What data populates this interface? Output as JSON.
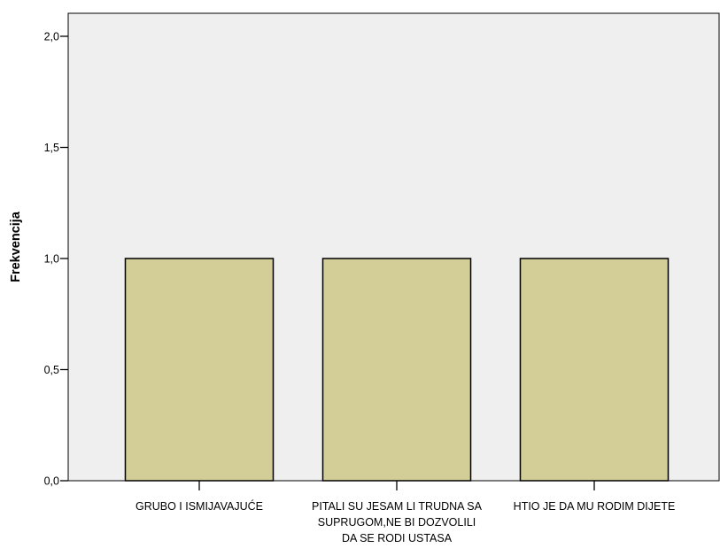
{
  "chart_data": {
    "type": "bar",
    "title": "",
    "xlabel": "",
    "ylabel": "Frekvencija",
    "categories": [
      [
        "GRUBO I ISMIJAVAJUĆE"
      ],
      [
        "PITALI SU JESAM LI TRUDNA SA",
        "SUPRUGOM,NE BI DOZVOLILI",
        "DA SE RODI USTASA"
      ],
      [
        "HTIO JE DA MU RODIM DIJETE"
      ]
    ],
    "values": [
      1,
      1,
      1
    ],
    "ylim": [
      0,
      2.1
    ],
    "yticks": [
      {
        "value": 0,
        "label": "0,0"
      },
      {
        "value": 0.5,
        "label": "0,5"
      },
      {
        "value": 1,
        "label": "1,0"
      },
      {
        "value": 1.5,
        "label": "1,5"
      },
      {
        "value": 2,
        "label": "2,0"
      }
    ],
    "grid": false,
    "colors": {
      "plot_background": "#efefef",
      "bar_fill": "#d3ce98",
      "bar_stroke": "#000000"
    }
  }
}
